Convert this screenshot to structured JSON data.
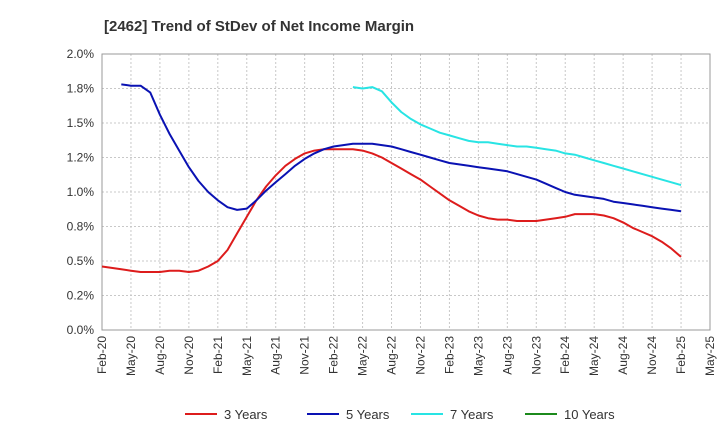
{
  "chart_data": {
    "type": "line",
    "title": "[2462]  Trend of StDev of Net Income Margin",
    "xlabel": "",
    "ylabel": "",
    "ylim": [
      0,
      2.0
    ],
    "yticks": [
      "0.0%",
      "0.2%",
      "0.5%",
      "0.8%",
      "1.0%",
      "1.2%",
      "1.5%",
      "1.8%",
      "2.0%"
    ],
    "xticks": [
      "Feb-20",
      "May-20",
      "Aug-20",
      "Nov-20",
      "Feb-21",
      "May-21",
      "Aug-21",
      "Nov-21",
      "Feb-22",
      "May-22",
      "Aug-22",
      "Nov-22",
      "Feb-23",
      "May-23",
      "Aug-23",
      "Nov-23",
      "Feb-24",
      "May-24",
      "Aug-24",
      "Nov-24",
      "Feb-25",
      "May-25"
    ],
    "grid": true,
    "legend_position": "bottom",
    "series": [
      {
        "name": "3 Years",
        "color": "#dd1c1c",
        "x": [
          "Feb-20",
          "Mar-20",
          "Apr-20",
          "May-20",
          "Jun-20",
          "Jul-20",
          "Aug-20",
          "Sep-20",
          "Oct-20",
          "Nov-20",
          "Dec-20",
          "Jan-21",
          "Feb-21",
          "Mar-21",
          "Apr-21",
          "May-21",
          "Jun-21",
          "Jul-21",
          "Aug-21",
          "Sep-21",
          "Oct-21",
          "Nov-21",
          "Dec-21",
          "Jan-22",
          "Feb-22",
          "Mar-22",
          "Apr-22",
          "May-22",
          "Jun-22",
          "Jul-22",
          "Aug-22",
          "Sep-22",
          "Oct-22",
          "Nov-22",
          "Dec-22",
          "Jan-23",
          "Feb-23",
          "Mar-23",
          "Apr-23",
          "May-23",
          "Jun-23",
          "Jul-23",
          "Aug-23",
          "Sep-23",
          "Oct-23",
          "Nov-23",
          "Dec-23",
          "Jan-24",
          "Feb-24",
          "Mar-24",
          "Apr-24",
          "May-24",
          "Jun-24",
          "Jul-24",
          "Aug-24",
          "Sep-24",
          "Oct-24",
          "Nov-24",
          "Dec-24",
          "Jan-25",
          "Feb-25"
        ],
        "values": [
          0.46,
          0.45,
          0.44,
          0.43,
          0.42,
          0.42,
          0.42,
          0.43,
          0.43,
          0.42,
          0.43,
          0.46,
          0.5,
          0.58,
          0.7,
          0.82,
          0.94,
          1.04,
          1.12,
          1.19,
          1.24,
          1.28,
          1.3,
          1.31,
          1.31,
          1.31,
          1.31,
          1.3,
          1.28,
          1.25,
          1.21,
          1.17,
          1.13,
          1.09,
          1.04,
          0.99,
          0.94,
          0.9,
          0.86,
          0.83,
          0.81,
          0.8,
          0.8,
          0.79,
          0.79,
          0.79,
          0.8,
          0.81,
          0.82,
          0.84,
          0.84,
          0.84,
          0.83,
          0.81,
          0.78,
          0.74,
          0.71,
          0.68,
          0.64,
          0.59,
          0.53
        ]
      },
      {
        "name": "5 Years",
        "color": "#0a12b3",
        "x": [
          "Apr-20",
          "May-20",
          "Jun-20",
          "Jul-20",
          "Aug-20",
          "Sep-20",
          "Oct-20",
          "Nov-20",
          "Dec-20",
          "Jan-21",
          "Feb-21",
          "Mar-21",
          "Apr-21",
          "May-21",
          "Jun-21",
          "Jul-21",
          "Aug-21",
          "Sep-21",
          "Oct-21",
          "Nov-21",
          "Dec-21",
          "Jan-22",
          "Feb-22",
          "Mar-22",
          "Apr-22",
          "May-22",
          "Jun-22",
          "Jul-22",
          "Aug-22",
          "Sep-22",
          "Oct-22",
          "Nov-22",
          "Dec-22",
          "Jan-23",
          "Feb-23",
          "Mar-23",
          "Apr-23",
          "May-23",
          "Jun-23",
          "Jul-23",
          "Aug-23",
          "Sep-23",
          "Oct-23",
          "Nov-23",
          "Dec-23",
          "Jan-24",
          "Feb-24",
          "Mar-24",
          "Apr-24",
          "May-24",
          "Jun-24",
          "Jul-24",
          "Aug-24",
          "Sep-24",
          "Oct-24",
          "Nov-24",
          "Dec-24",
          "Jan-25",
          "Feb-25"
        ],
        "values": [
          1.78,
          1.77,
          1.77,
          1.72,
          1.56,
          1.42,
          1.3,
          1.18,
          1.08,
          1.0,
          0.94,
          0.89,
          0.87,
          0.88,
          0.94,
          1.01,
          1.07,
          1.13,
          1.19,
          1.24,
          1.28,
          1.31,
          1.33,
          1.34,
          1.35,
          1.35,
          1.35,
          1.34,
          1.33,
          1.31,
          1.29,
          1.27,
          1.25,
          1.23,
          1.21,
          1.2,
          1.19,
          1.18,
          1.17,
          1.16,
          1.15,
          1.13,
          1.11,
          1.09,
          1.06,
          1.03,
          1.0,
          0.98,
          0.97,
          0.96,
          0.95,
          0.93,
          0.92,
          0.91,
          0.9,
          0.89,
          0.88,
          0.87,
          0.86
        ]
      },
      {
        "name": "7 Years",
        "color": "#28e4e4",
        "x": [
          "Apr-22",
          "May-22",
          "Jun-22",
          "Jul-22",
          "Aug-22",
          "Sep-22",
          "Oct-22",
          "Nov-22",
          "Dec-22",
          "Jan-23",
          "Feb-23",
          "Mar-23",
          "Apr-23",
          "May-23",
          "Jun-23",
          "Jul-23",
          "Aug-23",
          "Sep-23",
          "Oct-23",
          "Nov-23",
          "Dec-23",
          "Jan-24",
          "Feb-24",
          "Mar-24",
          "Apr-24",
          "May-24",
          "Jun-24",
          "Jul-24",
          "Aug-24",
          "Sep-24",
          "Oct-24",
          "Nov-24",
          "Dec-24",
          "Jan-25",
          "Feb-25"
        ],
        "values": [
          1.76,
          1.75,
          1.76,
          1.73,
          1.65,
          1.58,
          1.53,
          1.49,
          1.46,
          1.43,
          1.41,
          1.39,
          1.37,
          1.36,
          1.36,
          1.35,
          1.34,
          1.33,
          1.33,
          1.32,
          1.31,
          1.3,
          1.28,
          1.27,
          1.25,
          1.23,
          1.21,
          1.19,
          1.17,
          1.15,
          1.13,
          1.11,
          1.09,
          1.07,
          1.05
        ]
      },
      {
        "name": "10 Years",
        "color": "#1c8a1c",
        "x": [],
        "values": []
      }
    ]
  }
}
